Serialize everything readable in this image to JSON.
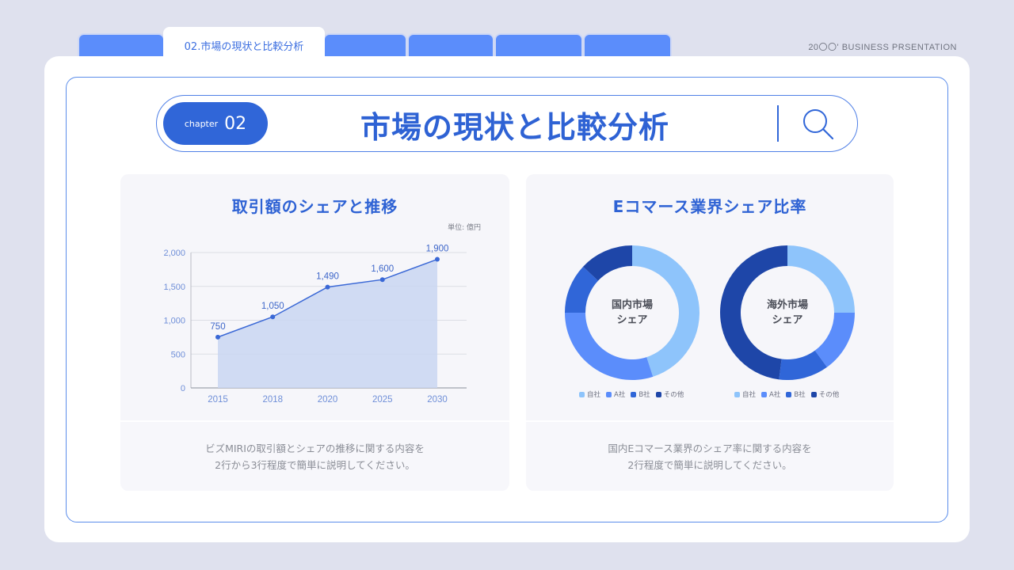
{
  "tabs": {
    "active_label": "02.市場の現状と比較分析"
  },
  "brand": "20〇〇' BUSINESS PRSENTATION",
  "header": {
    "chapter_label": "chapter",
    "chapter_num": "02",
    "title": "市場の現状と比較分析"
  },
  "colors": {
    "accent": "#3066d8",
    "tab": "#5b8dfb",
    "area_fill": "#c9d6f1",
    "line": "#3a68d6",
    "self": "#8ec4fb",
    "a": "#5b8dfb",
    "b": "#3066d8",
    "other": "#1e46a8"
  },
  "left_panel": {
    "title": "取引額のシェアと推移",
    "unit": "単位: 億円",
    "footer_line1": "ビズMIRIの取引額とシェアの推移に関する内容を",
    "footer_line2": "2行から3行程度で簡単に説明してください。"
  },
  "right_panel": {
    "title": "Eコマース業界シェア比率",
    "footer_line1": "国内Eコマース業界のシェア率に関する内容を",
    "footer_line2": "2行程度で簡単に説明してください。"
  },
  "chart_data": [
    {
      "type": "area",
      "title": "取引額のシェアと推移",
      "unit": "単位: 億円",
      "categories": [
        "2015",
        "2018",
        "2020",
        "2025",
        "2030"
      ],
      "values": [
        750,
        1050,
        1490,
        1600,
        1900
      ],
      "data_labels": [
        "750",
        "1,050",
        "1,490",
        "1,600",
        "1,900"
      ],
      "y_ticks": [
        "0",
        "500",
        "1,000",
        "1,500",
        "2,000"
      ],
      "ylim": [
        0,
        2000
      ],
      "grid": true
    },
    {
      "type": "pie",
      "center_label": [
        "国内市場",
        "シェア"
      ],
      "labels": [
        "自社",
        "A社",
        "B社",
        "その他"
      ],
      "values": [
        45,
        30,
        12,
        13
      ]
    },
    {
      "type": "pie",
      "center_label": [
        "海外市場",
        "シェア"
      ],
      "labels": [
        "自社",
        "A社",
        "B社",
        "その他"
      ],
      "values": [
        25,
        15,
        12,
        48
      ]
    }
  ]
}
